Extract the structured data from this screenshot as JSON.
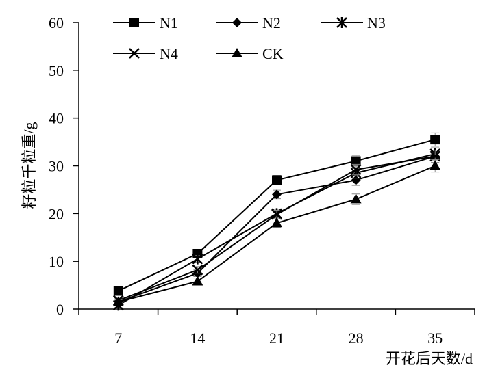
{
  "chart_data": {
    "type": "line",
    "xlabel": "开花后天数/d",
    "ylabel": "籽粒千粒重/g",
    "categories": [
      "7",
      "14",
      "21",
      "28",
      "35"
    ],
    "ylim": [
      0,
      60
    ],
    "yticks": [
      0,
      10,
      20,
      30,
      40,
      50,
      60
    ],
    "grid": false,
    "legend_position": "top",
    "series": [
      {
        "name": "N1",
        "marker": "square",
        "values": [
          3.8,
          11.6,
          27.0,
          31.0,
          35.5
        ],
        "errors": [
          0.6,
          0.8,
          1.0,
          1.2,
          1.4
        ]
      },
      {
        "name": "N2",
        "marker": "diamond",
        "values": [
          1.5,
          7.5,
          24.0,
          27.0,
          32.0
        ],
        "errors": [
          0.5,
          0.7,
          0.9,
          1.1,
          1.3
        ]
      },
      {
        "name": "N3",
        "marker": "asterisk",
        "values": [
          0.8,
          10.5,
          20.0,
          28.5,
          32.5
        ],
        "errors": [
          0.5,
          0.7,
          0.9,
          1.1,
          1.3
        ]
      },
      {
        "name": "N4",
        "marker": "x",
        "values": [
          1.8,
          8.2,
          19.8,
          29.2,
          32.0
        ],
        "errors": [
          0.5,
          0.7,
          0.9,
          1.1,
          1.3
        ]
      },
      {
        "name": "CK",
        "marker": "triangle",
        "values": [
          1.5,
          5.8,
          18.0,
          23.0,
          30.0
        ],
        "errors": [
          0.5,
          0.7,
          0.9,
          1.1,
          1.3
        ]
      }
    ]
  }
}
